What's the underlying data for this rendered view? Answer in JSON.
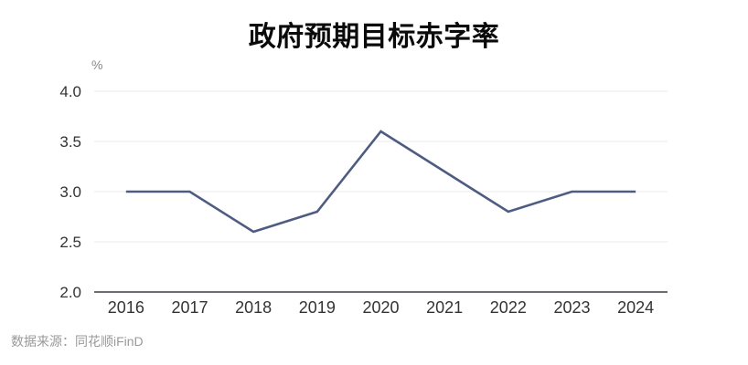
{
  "chart_data": {
    "type": "line",
    "title": "政府预期目标赤字率",
    "unit_label": "%",
    "categories": [
      "2016",
      "2017",
      "2018",
      "2019",
      "2020",
      "2021",
      "2022",
      "2023",
      "2024"
    ],
    "series": [
      {
        "name": "政府预期目标赤字率",
        "values": [
          3.0,
          3.0,
          2.6,
          2.8,
          3.6,
          3.2,
          2.8,
          3.0,
          3.0
        ]
      }
    ],
    "xlabel": "",
    "ylabel": "%",
    "ylim": [
      2.0,
      4.0
    ],
    "yticks": [
      4.0,
      3.5,
      3.0,
      2.5,
      2.0
    ],
    "grid": true,
    "legend_position": "none",
    "source": "数据来源：同花顺iFinD",
    "colors": {
      "line": "#4e5c82",
      "grid": "#ebebef",
      "axis": "#3c3c44",
      "tick_text": "#333333",
      "title_text": "#0a0a0a",
      "source_text": "#999999",
      "unit_text": "#888888",
      "background": "#ffffff"
    }
  }
}
